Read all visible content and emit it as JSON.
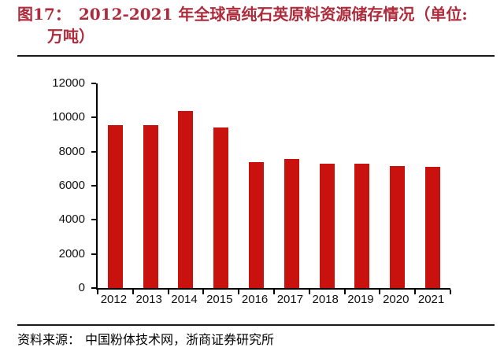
{
  "figure": {
    "label": "图17：",
    "title_line1": "2012-2021 年全球高纯石英原料资源储存情况（单位:",
    "title_line2": "万吨）"
  },
  "footer": {
    "source_label": "资料来源：",
    "source_text": "中国粉体技术网，浙商证券研究所"
  },
  "colors": {
    "bar": "#C9110E",
    "title_text": "#AE2B3B",
    "axis": "#000000",
    "rule": "#1a1a1a"
  },
  "chart_data": {
    "type": "bar",
    "categories": [
      "2012",
      "2013",
      "2014",
      "2015",
      "2016",
      "2017",
      "2018",
      "2019",
      "2020",
      "2021"
    ],
    "values": [
      9550,
      9550,
      10400,
      9400,
      7400,
      7550,
      7300,
      7300,
      7150,
      7100
    ],
    "title": "2012-2021 年全球高纯石英原料资源储存情况",
    "unit": "万吨",
    "xlabel": "",
    "ylabel": "",
    "ylim": [
      0,
      12000
    ],
    "yticks": [
      0,
      2000,
      4000,
      6000,
      8000,
      10000,
      12000
    ],
    "grid": false,
    "legend": "none"
  }
}
